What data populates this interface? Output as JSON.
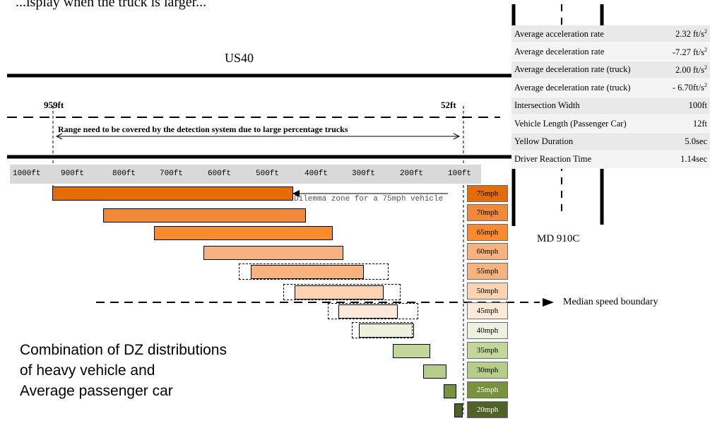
{
  "top_text": "...isplay when the truck is larger...",
  "road_name": "US40",
  "cross_road": "MD 910C",
  "distance_left": "959ft",
  "distance_right": "52ft",
  "range_label": "Range need to be covered by the detection system due to large percentage trucks",
  "ruler_ticks": [
    "1000ft",
    "900ft",
    "800ft",
    "700ft",
    "600ft",
    "500ft",
    "400ft",
    "300ft",
    "200ft",
    "100ft"
  ],
  "dilemma_note": "Dilemma zone for a 75mph vehicle",
  "median_label": "Median speed boundary",
  "caption": [
    "Combination of DZ distributions",
    "of heavy vehicle and",
    "Average passenger car"
  ],
  "speeds": [
    {
      "label": "75mph",
      "color": "#e46c0a"
    },
    {
      "label": "70mph",
      "color": "#f08a3a"
    },
    {
      "label": "65mph",
      "color": "#f88a30"
    },
    {
      "label": "60mph",
      "color": "#f7b37f"
    },
    {
      "label": "55mph",
      "color": "#f7b37f"
    },
    {
      "label": "50mph",
      "color": "#fad3b2"
    },
    {
      "label": "45mph",
      "color": "#fde9da"
    },
    {
      "label": "40mph",
      "color": "#ebf1de"
    },
    {
      "label": "35mph",
      "color": "#c3d69b"
    },
    {
      "label": "30mph",
      "color": "#b5cc8a"
    },
    {
      "label": "25mph",
      "color": "#77933c"
    },
    {
      "label": "20mph",
      "color": "#4f6228"
    }
  ],
  "params": [
    {
      "label": "Average acceleration rate",
      "value": "2.32 ft/s",
      "sup": "2"
    },
    {
      "label": "Average deceleration rate",
      "value": "-7.27 ft/s",
      "sup": "2"
    },
    {
      "label": "Average deceleration rate (truck)",
      "value": "2.00 ft/s",
      "sup": "2"
    },
    {
      "label": "Average deceleration rate (truck)",
      "value": "- 6.70ft/s",
      "sup": "2"
    },
    {
      "label": "Intersection Width",
      "value": "100ft",
      "sup": ""
    },
    {
      "label": "Vehicle Length (Passenger Car)",
      "value": "12ft",
      "sup": ""
    },
    {
      "label": "Yellow Duration",
      "value": "5.0sec",
      "sup": ""
    },
    {
      "label": "Driver Reaction Time",
      "value": "1.14sec",
      "sup": ""
    }
  ]
}
